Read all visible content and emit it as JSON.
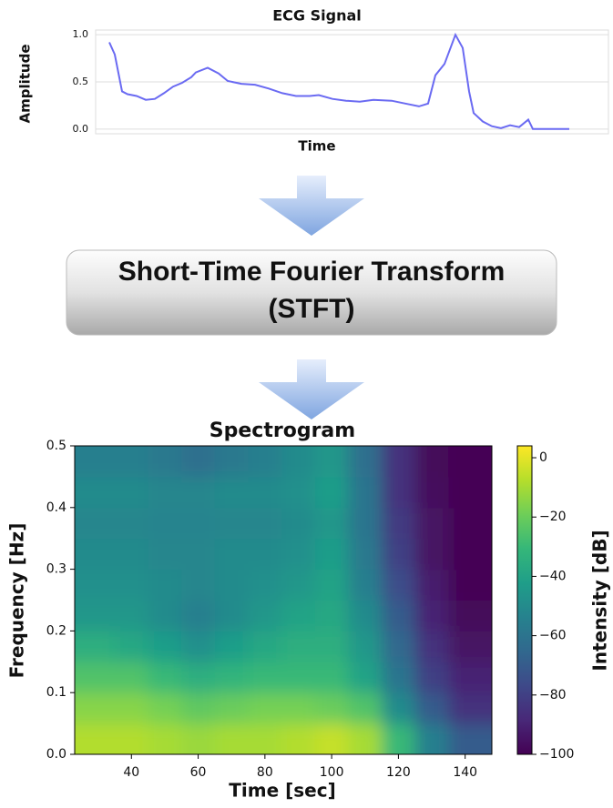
{
  "chart_data": [
    {
      "type": "line",
      "title": "ECG Signal",
      "x_label": "Time",
      "y_label": "Amplitude",
      "color": "#6a6af2",
      "grid": true,
      "xlim": [
        105,
        668
      ],
      "x": [
        120,
        126,
        134,
        140,
        150,
        160,
        170,
        180,
        190,
        200,
        210,
        215,
        228,
        240,
        250,
        265,
        280,
        295,
        310,
        325,
        340,
        350,
        365,
        380,
        395,
        410,
        430,
        445,
        460,
        470,
        478,
        488,
        500,
        508,
        515,
        520,
        530,
        540,
        550,
        560,
        570,
        580,
        585,
        625
      ],
      "values": [
        0.92,
        0.79,
        0.4,
        0.37,
        0.35,
        0.31,
        0.32,
        0.38,
        0.45,
        0.49,
        0.55,
        0.6,
        0.65,
        0.59,
        0.51,
        0.48,
        0.47,
        0.43,
        0.38,
        0.35,
        0.35,
        0.36,
        0.32,
        0.3,
        0.29,
        0.31,
        0.3,
        0.27,
        0.24,
        0.27,
        0.57,
        0.69,
        1.0,
        0.86,
        0.4,
        0.17,
        0.08,
        0.03,
        0.01,
        0.04,
        0.02,
        0.1,
        0.0,
        0.0
      ],
      "ylim": [
        -0.05,
        1.05
      ],
      "yticks": [
        {
          "value": 0,
          "label": "0.0"
        },
        {
          "value": 0.5,
          "label": "0.5"
        },
        {
          "value": 1,
          "label": "1.0"
        }
      ]
    },
    {
      "type": "heatmap",
      "title": "Spectrogram",
      "x_label": "Time [sec]",
      "y_label": "Frequency [Hz]",
      "colorbar_label": "Intensity [dB]",
      "xlim": [
        23,
        148
      ],
      "xticks": [
        40,
        60,
        80,
        100,
        120,
        140
      ],
      "ylim": [
        0,
        0.5
      ],
      "yticks": [
        {
          "value": 0,
          "label": "0.0"
        },
        0.1,
        0.2,
        0.3,
        0.4,
        0.5
      ],
      "clim": [
        -100,
        4
      ],
      "cticks": [
        0,
        {
          "value": -20,
          "label": "−20"
        },
        {
          "value": -40,
          "label": "−40"
        },
        {
          "value": -60,
          "label": "−60"
        },
        {
          "value": -80,
          "label": "−80"
        },
        {
          "value": -100,
          "label": "−100"
        }
      ],
      "x": [
        30,
        40,
        50,
        60,
        70,
        80,
        90,
        100,
        110,
        120,
        130,
        140
      ],
      "y": [
        0.025,
        0.075,
        0.125,
        0.175,
        0.225,
        0.275,
        0.325,
        0.375,
        0.425,
        0.475
      ],
      "values": [
        [
          -8,
          -8,
          -10,
          -12,
          -10,
          -10,
          -8,
          -5,
          -10,
          -30,
          -55,
          -70
        ],
        [
          -15,
          -15,
          -18,
          -22,
          -20,
          -18,
          -18,
          -20,
          -25,
          -50,
          -70,
          -85
        ],
        [
          -25,
          -25,
          -30,
          -35,
          -32,
          -30,
          -30,
          -30,
          -40,
          -60,
          -80,
          -90
        ],
        [
          -35,
          -38,
          -42,
          -48,
          -42,
          -38,
          -35,
          -35,
          -45,
          -65,
          -85,
          -95
        ],
        [
          -45,
          -45,
          -50,
          -55,
          -50,
          -45,
          -40,
          -38,
          -50,
          -70,
          -90,
          -98
        ],
        [
          -48,
          -48,
          -50,
          -52,
          -50,
          -48,
          -45,
          -40,
          -55,
          -75,
          -92,
          -100
        ],
        [
          -50,
          -50,
          -52,
          -52,
          -50,
          -50,
          -48,
          -42,
          -58,
          -80,
          -95,
          -100
        ],
        [
          -52,
          -52,
          -53,
          -53,
          -52,
          -52,
          -50,
          -45,
          -60,
          -82,
          -95,
          -100
        ],
        [
          -50,
          -50,
          -52,
          -52,
          -50,
          -50,
          -48,
          -42,
          -60,
          -85,
          -97,
          -100
        ],
        [
          -55,
          -55,
          -58,
          -62,
          -58,
          -55,
          -50,
          -45,
          -62,
          -85,
          -98,
          -100
        ]
      ]
    }
  ],
  "process": {
    "line1": "Short-Time Fourier Transform",
    "line2": "(STFT)"
  }
}
